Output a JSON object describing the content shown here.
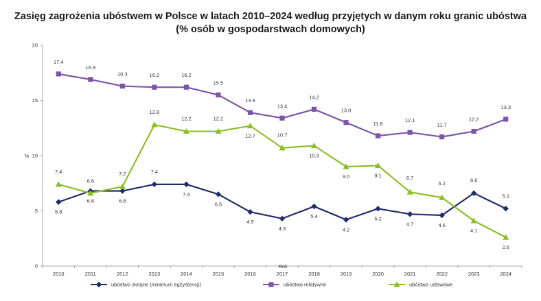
{
  "chart_data": {
    "type": "line",
    "title": "Zasięg zagrożenia ubóstwem w Polsce w latach 2010–2024 według przyjętych w danym roku granic ubóstwa",
    "subtitle": "(% osób w gospodarstwach domowych)",
    "xlabel": "Rok",
    "ylabel": "%",
    "ylim": [
      0,
      20
    ],
    "yticks": [
      0,
      5,
      10,
      15,
      20
    ],
    "grid": false,
    "legend_position": "bottom",
    "categories": [
      "2010",
      "2011",
      "2012",
      "2013",
      "2014",
      "2015",
      "2016",
      "2017",
      "2018",
      "2019",
      "2020",
      "2021",
      "2022",
      "2023",
      "2024"
    ],
    "series": [
      {
        "name": "ubóstwo skrajne (minimum egzystencji)",
        "color": "#1f2d6b",
        "marker": "diamond",
        "values": [
          5.8,
          6.8,
          6.8,
          7.4,
          7.4,
          6.5,
          4.9,
          4.3,
          5.4,
          4.2,
          5.2,
          4.7,
          4.6,
          6.6,
          5.2
        ],
        "label_text": [
          "5.8",
          "6.8",
          "6.8",
          "7.4",
          "7.4",
          "6.5",
          "4.9",
          "4.3",
          "5.4",
          "4.2",
          "5.2",
          "4.7",
          "4.6",
          "6.6",
          "5.2"
        ]
      },
      {
        "name": "ubóstwo relatywne",
        "color": "#7d55a6",
        "marker": "square",
        "values": [
          17.4,
          16.9,
          16.3,
          16.2,
          16.2,
          15.5,
          13.9,
          13.4,
          14.2,
          13.0,
          11.8,
          12.1,
          11.7,
          12.2,
          13.3
        ],
        "label_text": [
          "17.4",
          "16.9",
          "16.3",
          "16.2",
          "16.2",
          "15.5",
          "13.9",
          "13.4",
          "14.2",
          "13.0",
          "11.8",
          "12.1",
          "11.7",
          "12.2",
          "13.3"
        ]
      },
      {
        "name": "ubóstwo ustawowe",
        "color": "#8bbf2a",
        "marker": "triangle",
        "values": [
          7.4,
          6.6,
          7.2,
          12.8,
          12.2,
          12.2,
          12.7,
          10.7,
          10.9,
          9.0,
          9.1,
          6.7,
          6.2,
          4.1,
          2.6
        ],
        "label_text": [
          "7.4",
          "6.6",
          "7.2",
          "12.8",
          "12.2",
          "12.2",
          "12.7",
          "10.7",
          "10.9",
          "9.0",
          "9.1",
          "6.7",
          "6.2",
          "4.1",
          "2.6"
        ]
      }
    ]
  }
}
